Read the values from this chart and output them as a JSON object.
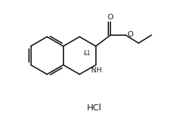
{
  "background_color": "#ffffff",
  "line_color": "#1a1a1a",
  "line_width": 1.3,
  "font_size_stereo": 5.5,
  "font_size_nh": 7.5,
  "font_size_o": 8,
  "font_size_hcl": 9,
  "hcl_text": "HCl",
  "stereo_label": "&1",
  "nh_label": "NH",
  "o_double_label": "O",
  "o_ester_label": "O",
  "figw": 2.84,
  "figh": 1.74,
  "dpi": 100,
  "xlim": [
    0,
    10
  ],
  "ylim": [
    0,
    6.5
  ]
}
